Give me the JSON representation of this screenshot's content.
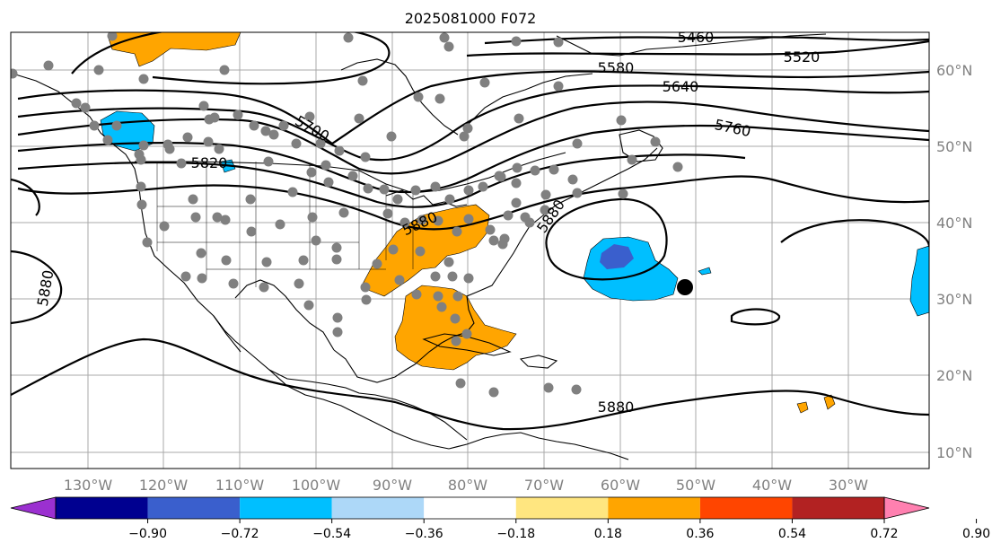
{
  "title": "2025081000 F072",
  "lon_labels": [
    "130°W",
    "120°W",
    "110°W",
    "100°W",
    "90°W",
    "80°W",
    "70°W",
    "60°W",
    "50°W",
    "40°W",
    "30°W"
  ],
  "lat_labels": [
    "60°N",
    "50°N",
    "40°N",
    "30°N",
    "20°N",
    "10°N"
  ],
  "contour_labels": [
    "5460",
    "5520",
    "5580",
    "5640",
    "5700",
    "5760",
    "5820",
    "5880",
    "5880",
    "5880",
    "5880"
  ],
  "colorbar": {
    "ticks": [
      "−0.90",
      "−0.72",
      "−0.54",
      "−0.36",
      "−0.18",
      "0.18",
      "0.36",
      "0.54",
      "0.72",
      "0.90"
    ],
    "colors": [
      "#9b30d0",
      "#000090",
      "#3a5fcd",
      "#00bfff",
      "#add8f8",
      "#ffffff",
      "#ffe680",
      "#ffa500",
      "#ff4500",
      "#b22222",
      "#ff80b0"
    ]
  },
  "colors": {
    "contour": "#000000",
    "coast": "#000000",
    "grid": "#a9a9a9",
    "stations": "#808080",
    "positive_anomaly": "#ffa500",
    "negative_anomaly": "#00bfff",
    "negative_core": "#3a5fcd",
    "marker": "#000000"
  }
}
